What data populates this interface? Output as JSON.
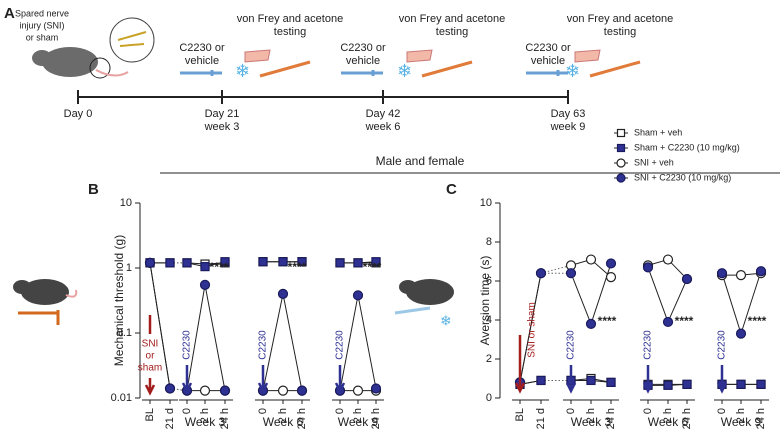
{
  "figure": {
    "panel_labels": [
      "A",
      "B",
      "C"
    ],
    "header": "Male and female"
  },
  "timeline": {
    "sni_label": [
      "Spared nerve",
      "injury (SNI)",
      "or sham"
    ],
    "testing": [
      [
        "von Frey and acetone",
        "testing"
      ],
      [
        "von Frey and acetone",
        "testing"
      ],
      [
        "von Frey and acetone",
        "testing"
      ]
    ],
    "treatment": [
      [
        "C2230 or",
        "vehicle"
      ],
      [
        "C2230 or",
        "vehicle"
      ],
      [
        "C2230 or",
        "vehicle"
      ]
    ],
    "days": [
      [
        "Day 0"
      ],
      [
        "Day 21",
        "week 3"
      ],
      [
        "Day 42",
        "week 6"
      ],
      [
        "Day 63",
        "week 9"
      ]
    ]
  },
  "chart_data": [
    {
      "type": "line",
      "ylabel": "Mechanical threshold (g)",
      "log_scale": true,
      "ylim": [
        0.01,
        10
      ],
      "yticks": [
        0.01,
        0.1,
        1,
        10
      ],
      "categories": [
        "BL",
        "21 d",
        "0",
        "2 h",
        "24 h",
        "0",
        "2 h",
        "24 h",
        "0",
        "2 h",
        "24 h"
      ],
      "groups": [
        "Week 3",
        "Week 6",
        "Week 9"
      ],
      "series": [
        {
          "name": "Sham + veh",
          "marker": "square",
          "color": "#ffffff",
          "values": [
            1.2,
            1.2,
            1.2,
            1.15,
            1.2,
            1.25,
            1.25,
            1.25,
            1.2,
            1.2,
            1.2
          ]
        },
        {
          "name": "Sham + C2230 (10 mg/kg)",
          "marker": "square",
          "color": "#2e3192",
          "values": [
            1.2,
            1.2,
            1.2,
            1.05,
            1.25,
            1.25,
            1.25,
            1.25,
            1.2,
            1.2,
            1.25
          ]
        },
        {
          "name": "SNI + veh",
          "marker": "circle",
          "color": "#ffffff",
          "values": [
            1.2,
            0.014,
            0.013,
            0.013,
            0.013,
            0.013,
            0.013,
            0.013,
            0.013,
            0.013,
            0.013
          ]
        },
        {
          "name": "SNI + C2230 (10 mg/kg)",
          "marker": "circle",
          "color": "#2e3192",
          "values": [
            1.2,
            0.014,
            0.013,
            0.55,
            0.013,
            0.013,
            0.4,
            0.013,
            0.013,
            0.38,
            0.014
          ]
        }
      ],
      "stars": [
        "****",
        "****",
        "****"
      ],
      "drug_labels": [
        "C2230",
        "C2230",
        "C2230"
      ],
      "injury_label": [
        "SNI",
        "or",
        "sham"
      ]
    },
    {
      "type": "line",
      "ylabel": "Aversion time (s)",
      "log_scale": false,
      "ylim": [
        0,
        10
      ],
      "yticks": [
        0,
        2,
        4,
        6,
        8,
        10
      ],
      "categories": [
        "BL",
        "21 d",
        "0",
        "2 h",
        "24 h",
        "0",
        "2 h",
        "24 h",
        "0",
        "2 h",
        "24 h"
      ],
      "groups": [
        "Week 3",
        "Week 6",
        "Week 9"
      ],
      "series": [
        {
          "marker": "square",
          "color": "#ffffff",
          "values": [
            0.7,
            0.9,
            0.9,
            1.0,
            0.8,
            0.7,
            0.7,
            0.7,
            0.7,
            0.7,
            0.7
          ]
        },
        {
          "marker": "square",
          "color": "#2e3192",
          "values": [
            0.7,
            0.9,
            0.9,
            0.9,
            0.8,
            0.65,
            0.65,
            0.7,
            0.7,
            0.7,
            0.7
          ]
        },
        {
          "marker": "circle",
          "color": "#ffffff",
          "values": [
            0.8,
            6.4,
            6.8,
            7.1,
            6.2,
            6.8,
            7.1,
            6.1,
            6.3,
            6.3,
            6.4
          ]
        },
        {
          "marker": "circle",
          "color": "#2e3192",
          "values": [
            0.8,
            6.4,
            6.4,
            3.8,
            6.9,
            6.7,
            3.9,
            6.1,
            6.4,
            3.3,
            6.5
          ]
        }
      ],
      "stars": [
        "****",
        "****",
        "****"
      ],
      "drug_labels": [
        "C2230",
        "C2230",
        "C2230"
      ],
      "injury_label": [
        "SNI or sham"
      ]
    }
  ]
}
